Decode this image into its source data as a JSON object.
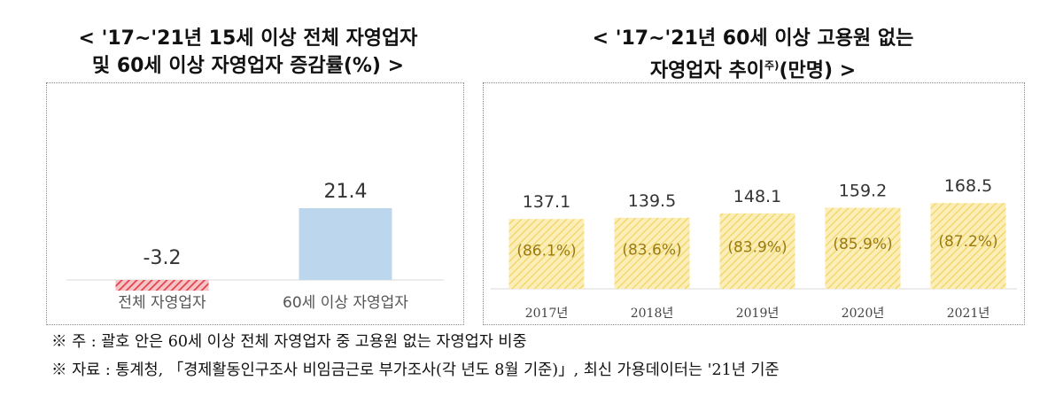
{
  "titles": {
    "left_line1": "< '17~'21년 15세 이상 전체 자영업자",
    "left_line2": "및 60세 이상 자영업자 증감률(%) >",
    "right_line1": "< '17~'21년 60세 이상 고용원 없는",
    "right_line2_pre": "자영업자 추이",
    "right_line2_sup": "주)",
    "right_line2_post": "(만명) >"
  },
  "chart_data": [
    {
      "type": "bar",
      "categories": [
        "전체 자영업자",
        "60세 이상 자영업자"
      ],
      "values": [
        -3.2,
        21.4
      ],
      "value_labels": [
        "-3.2",
        "21.4"
      ],
      "colors": [
        "#e0424a",
        "#bcd6ee"
      ]
    },
    {
      "type": "bar",
      "categories": [
        "2017년",
        "2018년",
        "2019년",
        "2020년",
        "2021년"
      ],
      "values": [
        137.1,
        139.5,
        148.1,
        159.2,
        168.5
      ],
      "value_labels": [
        "137.1",
        "139.5",
        "148.1",
        "159.2",
        "168.5"
      ],
      "share_labels": [
        "(86.1%)",
        "(83.6%)",
        "(83.9%)",
        "(85.9%)",
        "(87.2%)"
      ],
      "share_values": [
        86.1,
        83.6,
        83.9,
        85.9,
        87.2
      ],
      "color": "#f7e08a"
    }
  ],
  "notes": {
    "note1": "※ 주 : 괄호 안은 60세 이상 전체 자영업자 중 고용원 없는 자영업자 비중",
    "note2": "※ 자료 : 통계청, 「경제활동인구조사 비임금근로 부가조사(각 년도 8월 기준)」, 최신 가용데이터는 '21년 기준"
  }
}
